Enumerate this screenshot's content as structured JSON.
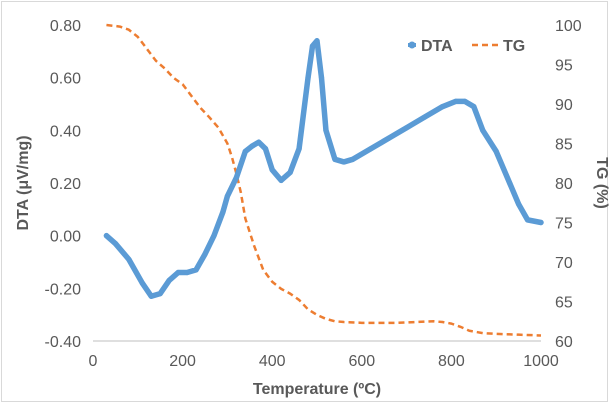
{
  "chart_data": {
    "type": "line",
    "xlabel": "Temperature (ºC)",
    "ylabel_left": "DTA (μV/mg)",
    "ylabel_right": "TG (%)",
    "xlim": [
      0,
      1000
    ],
    "ylim_left": [
      -0.4,
      0.8
    ],
    "ylim_right": [
      60,
      100
    ],
    "x_ticks": [
      "0",
      "200",
      "400",
      "600",
      "800",
      "1000"
    ],
    "x_tick_values": [
      0,
      200,
      400,
      600,
      800,
      1000
    ],
    "y_left_ticks": [
      "0.80",
      "0.60",
      "0.40",
      "0.20",
      "0.00",
      "-0.20",
      "-0.40"
    ],
    "y_left_tick_values": [
      0.8,
      0.6,
      0.4,
      0.2,
      0.0,
      -0.2,
      -0.4
    ],
    "y_right_ticks": [
      "100",
      "95",
      "90",
      "85",
      "80",
      "75",
      "70",
      "65",
      "60"
    ],
    "y_right_tick_values": [
      100,
      95,
      90,
      85,
      80,
      75,
      70,
      65,
      60
    ],
    "grid": false,
    "legend_position": "top-right",
    "series": [
      {
        "name": "DTA",
        "axis": "left",
        "style": "dotted-markers",
        "color": "#5b9bd5",
        "x": [
          30,
          50,
          80,
          110,
          130,
          150,
          170,
          190,
          210,
          230,
          250,
          270,
          290,
          300,
          320,
          340,
          355,
          370,
          385,
          400,
          420,
          440,
          460,
          480,
          490,
          500,
          510,
          520,
          540,
          560,
          580,
          620,
          660,
          700,
          740,
          780,
          810,
          830,
          850,
          870,
          900,
          930,
          950,
          970,
          1000
        ],
        "y": [
          0.0,
          -0.03,
          -0.09,
          -0.18,
          -0.23,
          -0.22,
          -0.17,
          -0.14,
          -0.14,
          -0.13,
          -0.07,
          0.0,
          0.09,
          0.15,
          0.22,
          0.32,
          0.34,
          0.355,
          0.33,
          0.25,
          0.21,
          0.24,
          0.33,
          0.6,
          0.72,
          0.74,
          0.6,
          0.4,
          0.29,
          0.28,
          0.29,
          0.33,
          0.37,
          0.41,
          0.45,
          0.49,
          0.51,
          0.51,
          0.49,
          0.4,
          0.32,
          0.2,
          0.12,
          0.06,
          0.05
        ]
      },
      {
        "name": "TG",
        "axis": "right",
        "style": "dashed",
        "color": "#ed7d31",
        "x": [
          30,
          60,
          80,
          100,
          120,
          140,
          160,
          180,
          200,
          220,
          240,
          260,
          280,
          300,
          310,
          320,
          330,
          340,
          360,
          380,
          400,
          420,
          440,
          460,
          480,
          500,
          520,
          540,
          560,
          600,
          640,
          680,
          720,
          760,
          780,
          800,
          820,
          840,
          870,
          900,
          950,
          1000
        ],
        "y": [
          100,
          99.8,
          99.4,
          98.5,
          97.0,
          95.5,
          94.5,
          93.3,
          92.5,
          91.0,
          89.5,
          88.3,
          87.0,
          85.0,
          83.3,
          81.2,
          78.8,
          75.5,
          72.0,
          69.0,
          67.5,
          66.6,
          66.0,
          65.2,
          64.0,
          63.3,
          62.8,
          62.5,
          62.4,
          62.3,
          62.3,
          62.3,
          62.4,
          62.5,
          62.4,
          62.2,
          61.8,
          61.3,
          61.0,
          60.9,
          60.8,
          60.7
        ]
      }
    ]
  }
}
